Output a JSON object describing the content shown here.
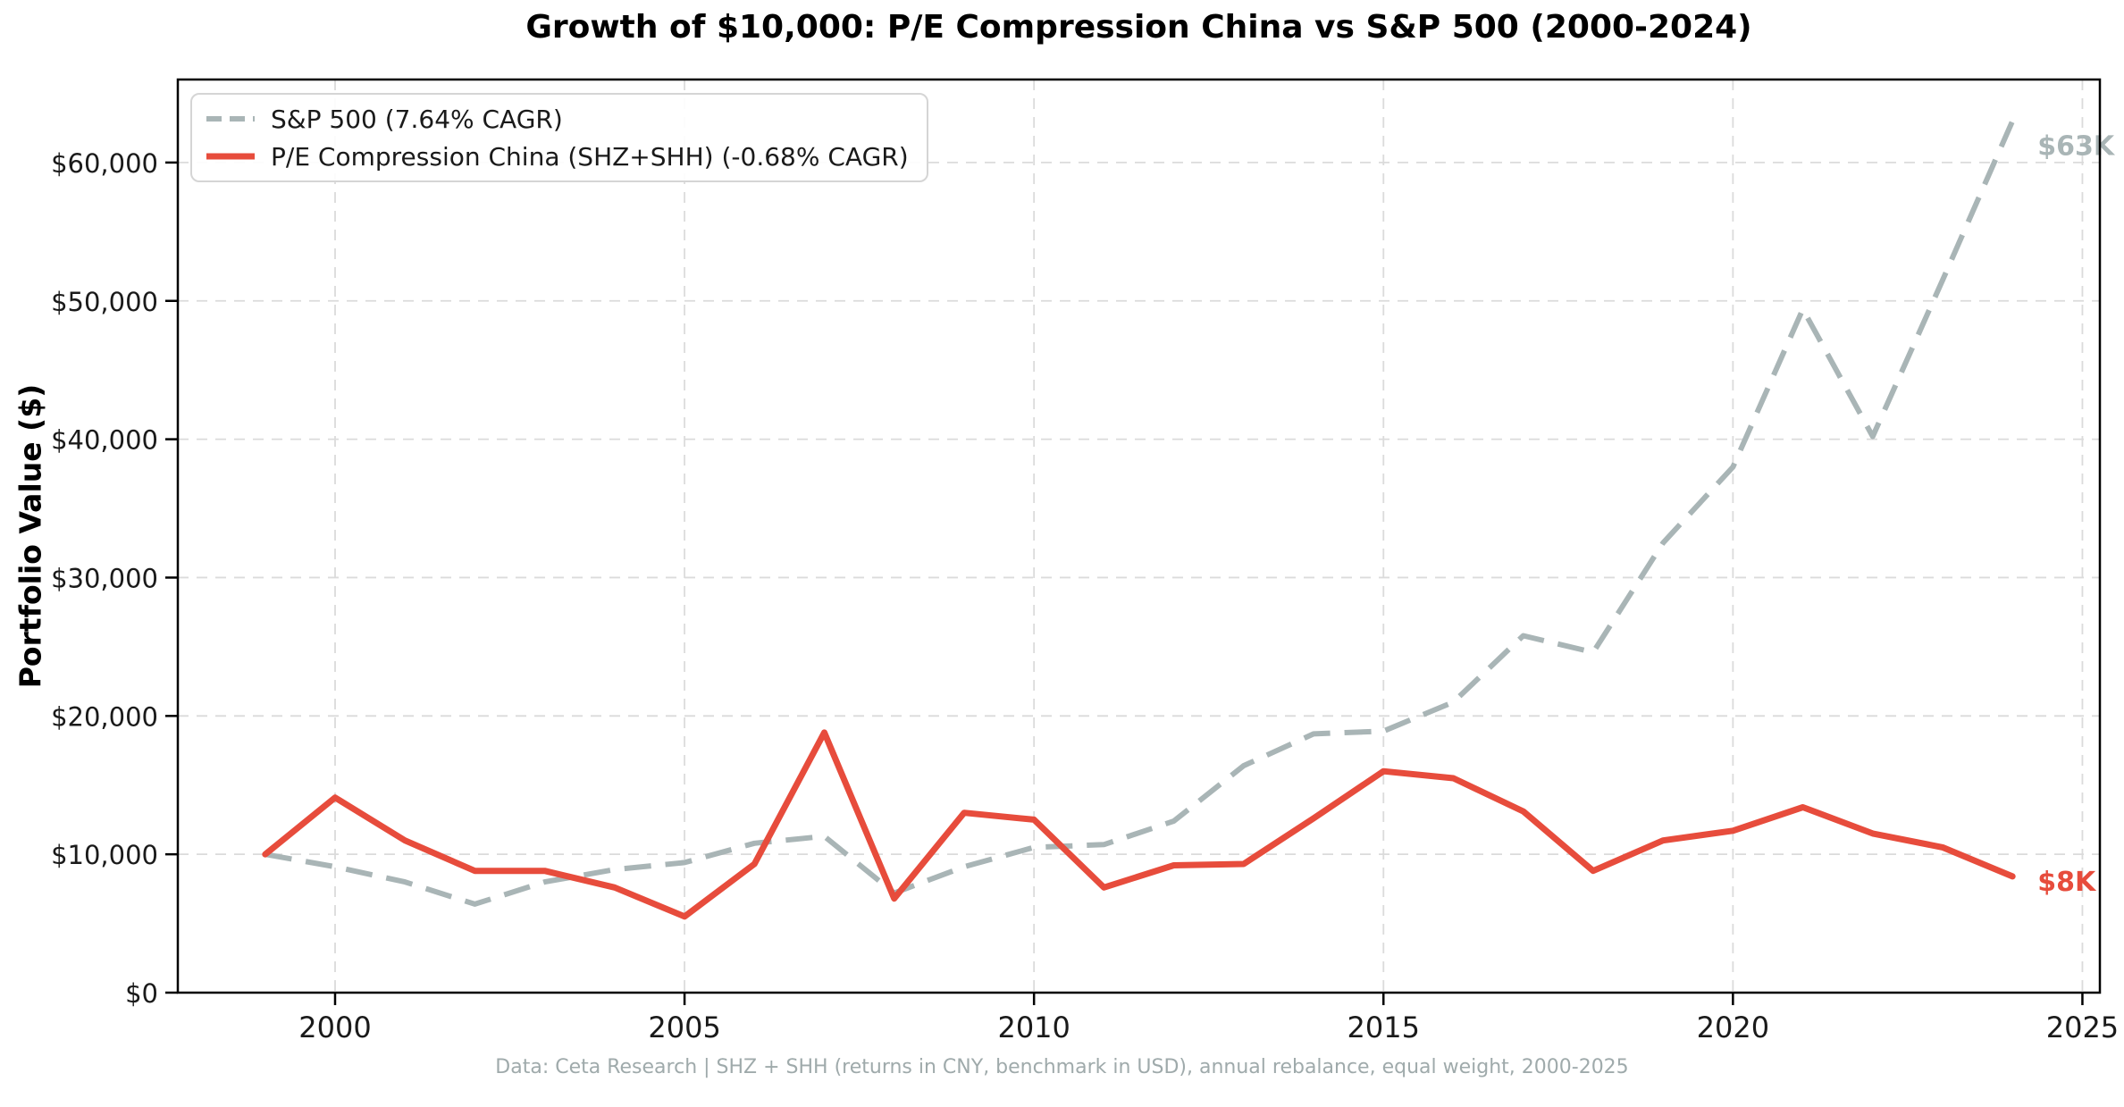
{
  "title": "Growth of $10,000: P/E Compression China vs S&P 500 (2000-2024)",
  "y_axis_label": "Portfolio Value ($)",
  "footer": "Data: Ceta Research | SHZ + SHH (returns in CNY, benchmark in USD), annual rebalance, equal weight, 2000-2025",
  "legend": {
    "items": [
      {
        "label": "S&P 500 (7.64% CAGR)",
        "color": "#a9b5b6",
        "style": "dashed"
      },
      {
        "label": "P/E Compression China (SHZ+SHH) (-0.68% CAGR)",
        "color": "#e74c3c",
        "style": "solid"
      }
    ]
  },
  "colors": {
    "background": "#ffffff",
    "grid": "#dbdbdb",
    "spine": "#000000",
    "tick_text": "#1a1a1a",
    "footer_text": "#9faaab",
    "sp500_line": "#a9b5b6",
    "china_line": "#e74c3c"
  },
  "chart_data": {
    "type": "line",
    "title": "Growth of $10,000: P/E Compression China vs S&P 500 (2000-2024)",
    "xlabel": "",
    "ylabel": "Portfolio Value ($)",
    "grid": true,
    "legend_position": "upper left",
    "xlim": [
      1997.75,
      2025.25
    ],
    "ylim": [
      0,
      66000
    ],
    "x_ticks": [
      2000,
      2005,
      2010,
      2015,
      2020,
      2025
    ],
    "x_tick_labels": [
      "2000",
      "2005",
      "2010",
      "2015",
      "2020",
      "2025"
    ],
    "y_ticks": [
      0,
      10000,
      20000,
      30000,
      40000,
      50000,
      60000
    ],
    "y_tick_labels": [
      "$0",
      "$10,000",
      "$20,000",
      "$30,000",
      "$40,000",
      "$50,000",
      "$60,000"
    ],
    "x": [
      1999,
      2000,
      2001,
      2002,
      2003,
      2004,
      2005,
      2006,
      2007,
      2008,
      2009,
      2010,
      2011,
      2012,
      2013,
      2014,
      2015,
      2016,
      2017,
      2018,
      2019,
      2020,
      2021,
      2022,
      2023,
      2024
    ],
    "series": [
      {
        "name": "S&P 500 (7.64% CAGR)",
        "color": "#a9b5b6",
        "dash": true,
        "end_label": "$63K",
        "values": [
          10000,
          9100,
          8000,
          6400,
          8000,
          8900,
          9400,
          10800,
          11300,
          7200,
          9100,
          10500,
          10700,
          12400,
          16400,
          18700,
          18900,
          21000,
          25800,
          24600,
          32500,
          38000,
          49400,
          40200,
          51500,
          63000
        ]
      },
      {
        "name": "P/E Compression China (SHZ+SHH) (-0.68% CAGR)",
        "color": "#e74c3c",
        "dash": false,
        "end_label": "$8K",
        "values": [
          10000,
          14100,
          11000,
          8800,
          8800,
          7600,
          5500,
          9300,
          18800,
          6800,
          13000,
          12500,
          7600,
          9200,
          9300,
          12600,
          16000,
          15500,
          13100,
          8800,
          11000,
          11700,
          13400,
          11500,
          10500,
          8400
        ]
      }
    ]
  }
}
